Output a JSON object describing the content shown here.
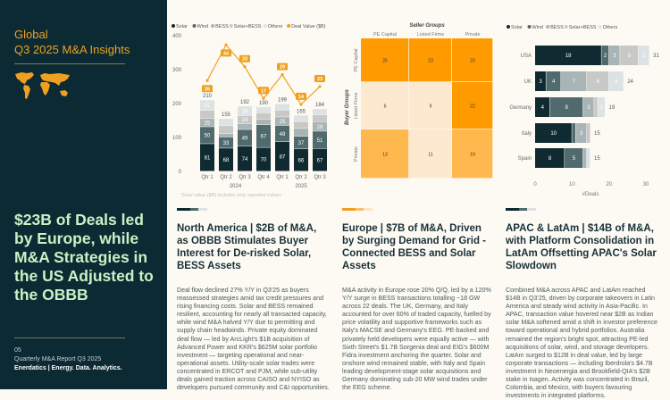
{
  "left": {
    "title_line1": "Global",
    "title_line2": "Q3 2025 M&A Insights",
    "headline": "$23B of Deals led by Europe, while M&A Strategies in the US Adjusted to the OBBB",
    "page": "05",
    "report": "Quarterly M&A Report Q3 2025",
    "brand": "Enerdatics | Energy. Data. Analytics.",
    "map_icon": "world-map-icon"
  },
  "colors": {
    "dark": "#0b2a33",
    "accent": "#f0a020",
    "headline": "#c9f2c4",
    "Solar": "#0f2b31",
    "Wind": "#506a6e",
    "BESS": "#a8b4b5",
    "Solar+BESS": "#c8c8c6",
    "Others": "#dde3e4"
  },
  "chart_data": [
    {
      "type": "bar",
      "stacked": true,
      "legend": [
        "Solar",
        "Wind",
        "BESS",
        "Solar+BESS",
        "Others",
        "Deal Value ($B)"
      ],
      "legend_position": "top",
      "categories": [
        "Qtr 1",
        "Qtr 2",
        "Qtr 3",
        "Qtr 4",
        "Qtr 1",
        "Qtr 2",
        "Qtr 3"
      ],
      "years": [
        "2024",
        "2025"
      ],
      "series": [
        {
          "name": "Solar",
          "values": [
            81,
            68,
            74,
            70,
            87,
            66,
            67
          ]
        },
        {
          "name": "Wind",
          "values": [
            50,
            33,
            49,
            67,
            48,
            37,
            51
          ]
        },
        {
          "name": "BESS",
          "values": [
            25,
            10,
            17,
            16,
            25,
            23,
            28
          ]
        },
        {
          "name": "Solar+BESS",
          "values": [
            23,
            23,
            24,
            19,
            20,
            20,
            20
          ]
        },
        {
          "name": "Others",
          "values": [
            31,
            21,
            28,
            18,
            19,
            19,
            18
          ]
        }
      ],
      "totals": [
        210,
        155,
        192,
        190,
        199,
        165,
        184
      ],
      "line": {
        "name": "Deal Value ($B)",
        "values": [
          26,
          44,
          33,
          17,
          29,
          14,
          23
        ]
      },
      "ylim": [
        0,
        400
      ],
      "yticks": [
        0,
        100,
        200,
        300,
        400
      ],
      "note": "*Deal value ($B) includes only reported values"
    },
    {
      "type": "heatmap",
      "title": "Seller Groups",
      "ylabel": "Buyer Groups",
      "columns": [
        "PE Capital",
        "Listed Firms",
        "Private"
      ],
      "rows": [
        "PE Capital",
        "Listed Firms",
        "Private"
      ],
      "values": [
        [
          25,
          23,
          23
        ],
        [
          6,
          9,
          22
        ],
        [
          13,
          11,
          19
        ]
      ]
    },
    {
      "type": "bar",
      "orientation": "horizontal",
      "stacked": true,
      "legend": [
        "Solar",
        "Wind",
        "BESS",
        "Solar+BESS",
        "Others"
      ],
      "legend_position": "top",
      "categories": [
        "USA",
        "UK",
        "Germany",
        "Italy",
        "Spain"
      ],
      "series": [
        {
          "name": "Solar",
          "values": [
            18,
            3,
            4,
            10,
            8
          ]
        },
        {
          "name": "Wind",
          "values": [
            2,
            4,
            9,
            1,
            5
          ]
        },
        {
          "name": "BESS",
          "values": [
            3,
            7,
            3,
            3,
            1
          ]
        },
        {
          "name": "Solar+BESS",
          "values": [
            5,
            6,
            1,
            1,
            0
          ]
        },
        {
          "name": "Others",
          "values": [
            3,
            4,
            2,
            0,
            1
          ]
        }
      ],
      "totals": [
        31,
        24,
        19,
        15,
        15
      ],
      "xlabel": "#Deals",
      "xlim": [
        0,
        30
      ],
      "xticks": [
        0,
        10,
        20,
        30
      ]
    }
  ],
  "sections": [
    {
      "heading": "North America | $2B of M&A, as OBBB Stimulates Buyer Interest for De-risked Solar, BESS Assets",
      "body": "Deal flow declined 27% Y/Y in Q3'25 as buyers reassessed strategies amid tax credit pressures and rising financing costs. Solar and BESS remained resilient, accounting for nearly all transacted capacity, while wind M&A halved Y/Y due to permitting and supply chain headwinds. Private equity dominated deal flow — led by ArcLight's $1B acquisition of Advanced Power and KKR's $625M solar portfolio investment — targeting operational and near-operational assets. Utility-scale solar trades were concentrated in ERCOT and PJM, while sub-utility deals gained traction across CAISO and NYISO as developers pursued community and C&I opportunities."
    },
    {
      "heading": "Europe | $7B of M&A, Driven by Surging Demand for Grid - Connected BESS and Solar Assets",
      "body": "M&A activity in Europe rose 20% Q/Q, led by a 120% Y/Y surge in BESS transactions totalling ~18 GW across 22 deals. The UK, Germany, and Italy accounted for over 60% of traded capacity, fuelled by price volatility and supportive frameworks such as Italy's MACSE and Germany's EEG. PE-backed and privately held developers were equally active — with Sixth Street's $1.7B Sorgenia deal and EIG's $600M Fidra investment anchoring the quarter. Solar and onshore wind remained stable, with Italy and Spain leading development-stage solar acquisitions and Germany dominating sub-20 MW wind trades under the EEG scheme."
    },
    {
      "heading": "APAC & LatAm | $14B of M&A, with Platform Consolidation in LatAm Offsetting APAC's Solar Slowdown",
      "body": "Combined M&A across APAC and LatAm reached $14B in Q3'25, driven by corporate takeovers in Latin America and steady wind activity in Asia-Pacific. In APAC, transaction value hovered near $2B as Indian solar M&A softened amid a shift in investor preference toward operational and hybrid portfolios. Australia remained the region's bright spot, attracting PE-led acquisitions of solar, wind, and storage developers. LatAm surged to $12B in deal value, led by large corporate transactions — including Iberdrola's $4.7B investment in Neoenergia and Brookfield-QIA's $2B stake in Isagen. Activity was concentrated in Brazil, Colombia, and Mexico, with buyers favouring investments in integrated platforms."
    }
  ]
}
